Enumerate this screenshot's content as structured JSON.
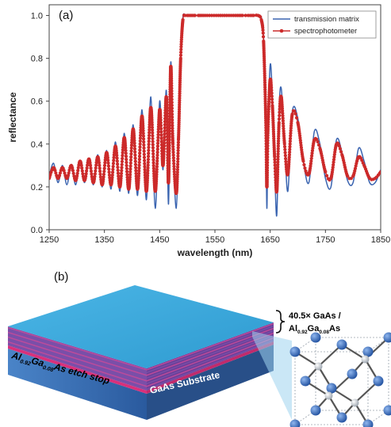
{
  "chart_data": {
    "type": "line",
    "panel_label": "(a)",
    "xlabel": "wavelength (nm)",
    "ylabel": "reflectance",
    "xlim": [
      1250,
      1850
    ],
    "ylim": [
      0.0,
      1.05
    ],
    "x_ticks": [
      1250,
      1350,
      1450,
      1550,
      1650,
      1750,
      1850
    ],
    "y_ticks": [
      "0.0",
      "0.2",
      "0.4",
      "0.6",
      "0.8",
      "1.0"
    ],
    "legend_position": "top-right",
    "series": [
      {
        "name": "transmission matrix",
        "color": "#3a64b0",
        "style": "line",
        "x": [
          1250,
          1258,
          1266,
          1274,
          1282,
          1290,
          1298,
          1306,
          1314,
          1322,
          1330,
          1338,
          1346,
          1354,
          1362,
          1370,
          1378,
          1386,
          1394,
          1402,
          1410,
          1418,
          1426,
          1434,
          1442,
          1450,
          1456,
          1462,
          1466,
          1470,
          1474,
          1480,
          1484,
          1488,
          1492,
          1496,
          1500,
          1506,
          1512,
          1520,
          1560,
          1600,
          1620,
          1628,
          1634,
          1638,
          1642,
          1644,
          1646,
          1650,
          1654,
          1658,
          1662,
          1666,
          1670,
          1676,
          1682,
          1690,
          1700,
          1710,
          1720,
          1730,
          1740,
          1750,
          1760,
          1770,
          1780,
          1790,
          1800,
          1810,
          1820,
          1830,
          1840,
          1850
        ],
        "y": [
          0.25,
          0.31,
          0.22,
          0.3,
          0.21,
          0.3,
          0.21,
          0.32,
          0.22,
          0.33,
          0.21,
          0.35,
          0.2,
          0.37,
          0.19,
          0.41,
          0.18,
          0.45,
          0.17,
          0.49,
          0.16,
          0.56,
          0.14,
          0.62,
          0.1,
          0.6,
          0.28,
          0.65,
          0.12,
          0.78,
          0.38,
          0.1,
          0.4,
          0.8,
          0.99,
          1.0,
          1.0,
          1.0,
          1.0,
          1.0,
          1.0,
          1.0,
          1.0,
          1.0,
          0.99,
          0.9,
          0.5,
          0.1,
          0.45,
          0.77,
          0.62,
          0.3,
          0.07,
          0.55,
          0.66,
          0.42,
          0.18,
          0.55,
          0.52,
          0.32,
          0.22,
          0.46,
          0.4,
          0.24,
          0.2,
          0.42,
          0.36,
          0.23,
          0.22,
          0.38,
          0.32,
          0.22,
          0.22,
          0.28
        ]
      },
      {
        "name": "spectrophotometer",
        "color": "#cc2a2a",
        "style": "line+markers",
        "x": [
          1250,
          1258,
          1266,
          1274,
          1282,
          1290,
          1298,
          1306,
          1314,
          1322,
          1330,
          1338,
          1346,
          1354,
          1362,
          1370,
          1378,
          1386,
          1394,
          1402,
          1410,
          1418,
          1426,
          1434,
          1442,
          1450,
          1456,
          1462,
          1466,
          1470,
          1474,
          1480,
          1484,
          1488,
          1492,
          1496,
          1500,
          1506,
          1512,
          1520,
          1560,
          1600,
          1620,
          1628,
          1634,
          1638,
          1642,
          1644,
          1646,
          1650,
          1654,
          1658,
          1662,
          1666,
          1670,
          1676,
          1682,
          1690,
          1700,
          1710,
          1720,
          1730,
          1740,
          1750,
          1760,
          1770,
          1780,
          1790,
          1800,
          1810,
          1820,
          1830,
          1840,
          1850
        ],
        "y": [
          0.24,
          0.29,
          0.24,
          0.29,
          0.24,
          0.3,
          0.23,
          0.32,
          0.23,
          0.33,
          0.22,
          0.34,
          0.21,
          0.36,
          0.21,
          0.39,
          0.2,
          0.43,
          0.19,
          0.47,
          0.19,
          0.53,
          0.18,
          0.57,
          0.18,
          0.56,
          0.3,
          0.62,
          0.22,
          0.76,
          0.4,
          0.17,
          0.42,
          0.8,
          0.98,
          1.0,
          1.0,
          1.0,
          1.0,
          1.0,
          1.0,
          1.0,
          1.0,
          1.0,
          0.98,
          0.88,
          0.52,
          0.2,
          0.47,
          0.7,
          0.58,
          0.34,
          0.18,
          0.5,
          0.62,
          0.4,
          0.26,
          0.54,
          0.5,
          0.32,
          0.26,
          0.42,
          0.38,
          0.27,
          0.24,
          0.4,
          0.35,
          0.25,
          0.25,
          0.34,
          0.3,
          0.24,
          0.24,
          0.27
        ]
      }
    ]
  },
  "diagram": {
    "panel_label": "(b)",
    "layer_label_line1": "40.5× GaAs /",
    "layer_label_line2_base": "Al",
    "layer_label_line2_sub1": "0.92",
    "layer_label_line2_mid": "Ga",
    "layer_label_line2_sub2": "0.08",
    "layer_label_line2_end": "As",
    "etch_stop_base": "Al",
    "etch_stop_sub1": "0.92",
    "etch_stop_mid": "Ga",
    "etch_stop_sub2": "0.08",
    "etch_stop_end": "As etch stop",
    "substrate_label": "GaAs Substrate",
    "colors": {
      "top_face": "#3aa8dc",
      "substrate_front": "#2f64a8",
      "substrate_side": "#274f86",
      "mirror_layer_a": "#7a4fa8",
      "mirror_layer_b": "#c04a9a",
      "etch_stop": "#d9307a",
      "atom": "#2e63b2"
    }
  }
}
